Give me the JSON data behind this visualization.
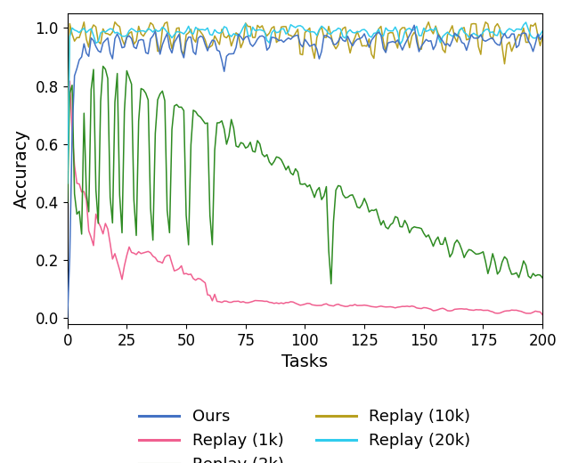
{
  "xlabel": "Tasks",
  "ylabel": "Accuracy",
  "xlim": [
    0,
    200
  ],
  "ylim": [
    -0.02,
    1.05
  ],
  "xticks": [
    0,
    25,
    50,
    75,
    100,
    125,
    150,
    175,
    200
  ],
  "yticks": [
    0.0,
    0.2,
    0.4,
    0.6,
    0.8,
    1.0
  ],
  "colors": {
    "ours": "#4472C4",
    "replay_1k": "#F06090",
    "replay_2k": "#2E8B22",
    "replay_10k": "#B8A020",
    "replay_20k": "#30CCEE"
  },
  "linewidth": 1.1,
  "n_tasks": 201,
  "seed": 42,
  "legend_fontsize": 13,
  "axis_fontsize": 14,
  "tick_fontsize": 12
}
